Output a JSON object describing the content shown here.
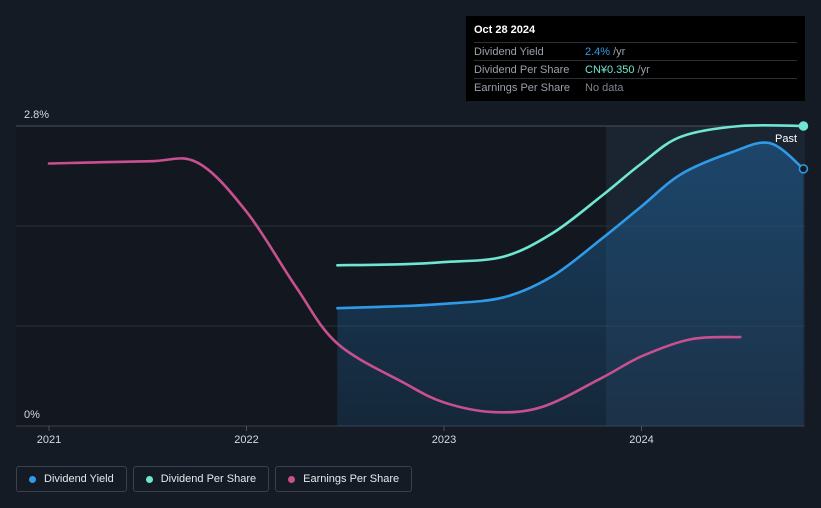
{
  "tooltip": {
    "date": "Oct 28 2024",
    "rows": [
      {
        "label": "Dividend Yield",
        "value": "2.4%",
        "unit": "/yr",
        "color": "#2f9be8"
      },
      {
        "label": "Dividend Per Share",
        "value": "CN¥0.350",
        "unit": "/yr",
        "color": "#6fe6d2"
      },
      {
        "label": "Earnings Per Share",
        "value": "No data",
        "unit": "",
        "color": "#7d838c"
      }
    ]
  },
  "legend": [
    {
      "label": "Dividend Yield",
      "color": "#2f9be8"
    },
    {
      "label": "Dividend Per Share",
      "color": "#6fe6d2"
    },
    {
      "label": "Earnings Per Share",
      "color": "#c9508f"
    }
  ],
  "chart_data": {
    "type": "line",
    "y_tick_labels": [
      "2.8%",
      "0%"
    ],
    "x_tick_labels": [
      "2021",
      "2022",
      "2023",
      "2024"
    ],
    "ylim": [
      0,
      2.8
    ],
    "xlim": [
      2020.83,
      2024.82
    ],
    "past_label": "Past",
    "past_start": 2023.82,
    "grid": true,
    "legend_position": "bottom-left",
    "series": [
      {
        "name": "Dividend Yield",
        "color": "#2f9be8",
        "area": true,
        "points": [
          [
            2022.46,
            1.1
          ],
          [
            2022.8,
            1.12
          ],
          [
            2023.0,
            1.14
          ],
          [
            2023.3,
            1.2
          ],
          [
            2023.55,
            1.4
          ],
          [
            2023.8,
            1.75
          ],
          [
            2024.0,
            2.05
          ],
          [
            2024.2,
            2.35
          ],
          [
            2024.45,
            2.55
          ],
          [
            2024.65,
            2.64
          ],
          [
            2024.82,
            2.4
          ]
        ]
      },
      {
        "name": "Dividend Per Share",
        "color": "#6fe6d2",
        "area": false,
        "points": [
          [
            2022.46,
            1.5
          ],
          [
            2022.8,
            1.51
          ],
          [
            2023.0,
            1.53
          ],
          [
            2023.3,
            1.58
          ],
          [
            2023.55,
            1.8
          ],
          [
            2023.8,
            2.15
          ],
          [
            2024.0,
            2.45
          ],
          [
            2024.2,
            2.7
          ],
          [
            2024.5,
            2.8
          ],
          [
            2024.82,
            2.8
          ]
        ]
      },
      {
        "name": "Earnings Per Share",
        "color": "#c9508f",
        "area": false,
        "points": [
          [
            2021.0,
            2.45
          ],
          [
            2021.5,
            2.47
          ],
          [
            2021.75,
            2.46
          ],
          [
            2022.0,
            2.0
          ],
          [
            2022.25,
            1.3
          ],
          [
            2022.46,
            0.77
          ],
          [
            2022.8,
            0.4
          ],
          [
            2023.0,
            0.22
          ],
          [
            2023.25,
            0.13
          ],
          [
            2023.5,
            0.18
          ],
          [
            2023.8,
            0.45
          ],
          [
            2024.0,
            0.65
          ],
          [
            2024.25,
            0.81
          ],
          [
            2024.5,
            0.83
          ]
        ]
      }
    ],
    "end_markers": [
      "Dividend Yield",
      "Dividend Per Share"
    ]
  }
}
